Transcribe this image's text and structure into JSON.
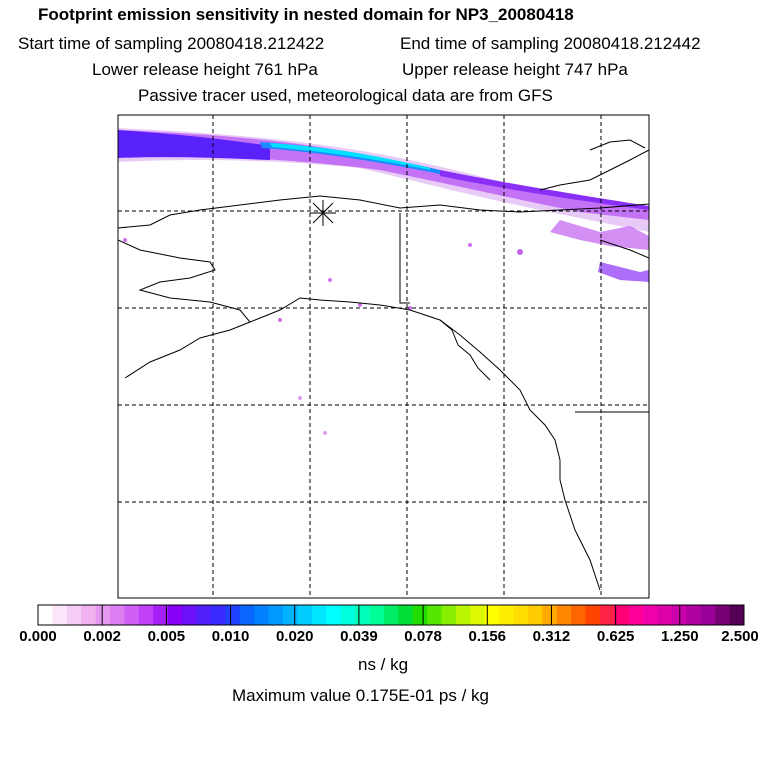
{
  "title": "Footprint emission sensitivity in nested domain for NP3_20080418",
  "sampling": {
    "start_label": "Start time of sampling 20080418.212422",
    "end_label": "End time of sampling 20080418.212442"
  },
  "release": {
    "lower_label": "Lower release height  761 hPa",
    "upper_label": "Upper release height  747 hPa"
  },
  "note": "Passive tracer used, meteorological data are from GFS",
  "colorbar": {
    "ticks": [
      "0.000",
      "0.002",
      "0.005",
      "0.010",
      "0.020",
      "0.039",
      "0.078",
      "0.156",
      "0.312",
      "0.625",
      "1.250",
      "2.500"
    ],
    "units": "ns / kg",
    "colors": [
      "#ffffff",
      "#fbe6fb",
      "#f5ccf5",
      "#efb2ef",
      "#e699f0",
      "#dd7ff2",
      "#d060f5",
      "#c040f7",
      "#a820f8",
      "#8800fa",
      "#6a10fb",
      "#5020fc",
      "#3a2aff",
      "#2040ff",
      "#0a66ff",
      "#0080ff",
      "#0099ff",
      "#00b2ff",
      "#00ccff",
      "#00e6ff",
      "#00ffff",
      "#00ffdd",
      "#00ffbb",
      "#00ff99",
      "#00ee66",
      "#00dd33",
      "#22dd00",
      "#55e600",
      "#88ee00",
      "#bbf500",
      "#ddfa00",
      "#ffff00",
      "#ffee00",
      "#ffdd00",
      "#ffcc00",
      "#ffaa00",
      "#ff8800",
      "#ff6600",
      "#ff4400",
      "#ff2244",
      "#ff0077",
      "#ff0099",
      "#f000aa",
      "#dd00aa",
      "#cc00aa",
      "#b000a0",
      "#990099",
      "#770077",
      "#550055"
    ]
  },
  "max_value_label": "Maximum value  0.175E-01 ps / kg",
  "release_marker": "release-point-star"
}
